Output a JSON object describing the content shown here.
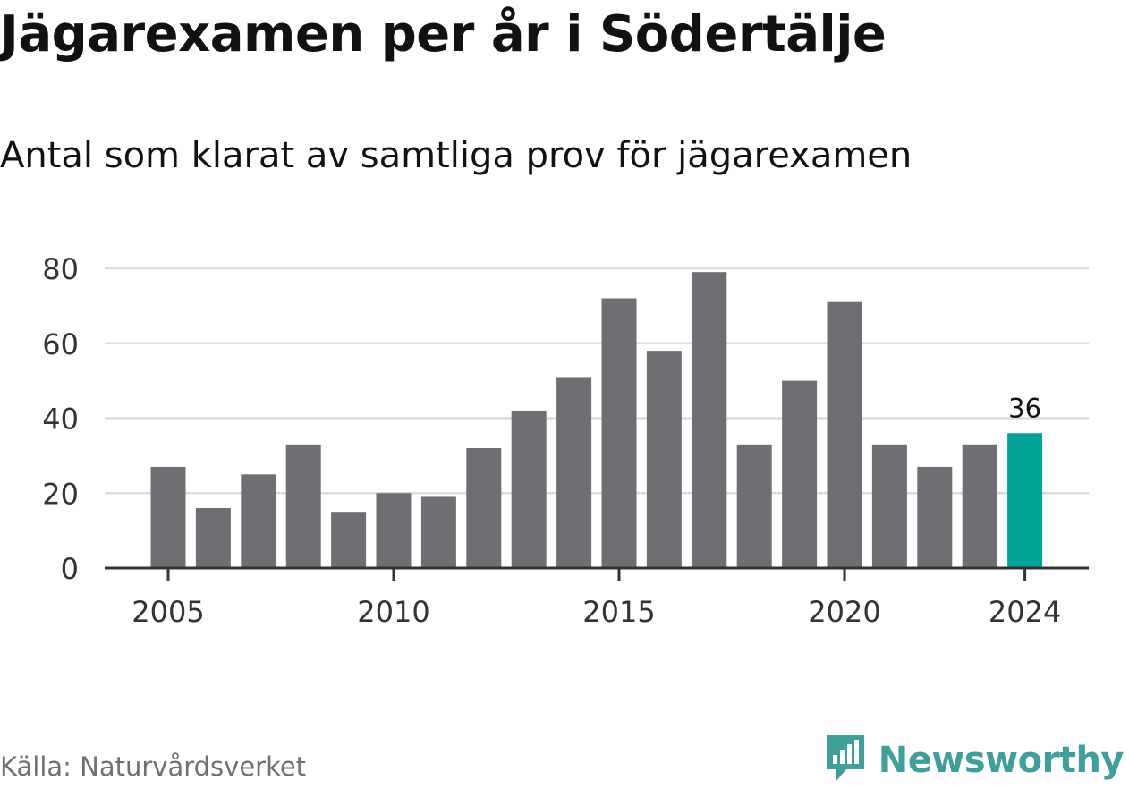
{
  "header": {
    "title": "Jägarexamen per år i Södertälje",
    "subtitle": "Antal som klarat av samtliga prov för jägarexamen"
  },
  "footer": {
    "source": "Källa: Naturvårdsverket",
    "brand": "Newsworthy",
    "brand_icon": "newsworthy-logo-icon"
  },
  "colors": {
    "bar": "#6f6e73",
    "highlight": "#00a397",
    "grid": "#dcdcdc",
    "axis": "#333333",
    "brand": "#3f9f9a"
  },
  "chart_data": {
    "type": "bar",
    "x": [
      2005,
      2006,
      2007,
      2008,
      2009,
      2010,
      2011,
      2012,
      2013,
      2014,
      2015,
      2016,
      2017,
      2018,
      2019,
      2020,
      2021,
      2022,
      2023,
      2024
    ],
    "values": [
      27,
      16,
      25,
      33,
      15,
      20,
      19,
      32,
      42,
      51,
      72,
      58,
      79,
      33,
      50,
      71,
      33,
      27,
      33,
      36
    ],
    "highlight": {
      "x": 2024,
      "label": "36"
    },
    "x_ticks": [
      2005,
      2010,
      2015,
      2020,
      2024
    ],
    "y_ticks": [
      0,
      20,
      40,
      60,
      80
    ],
    "ylim": [
      0,
      80
    ],
    "grid": true
  }
}
